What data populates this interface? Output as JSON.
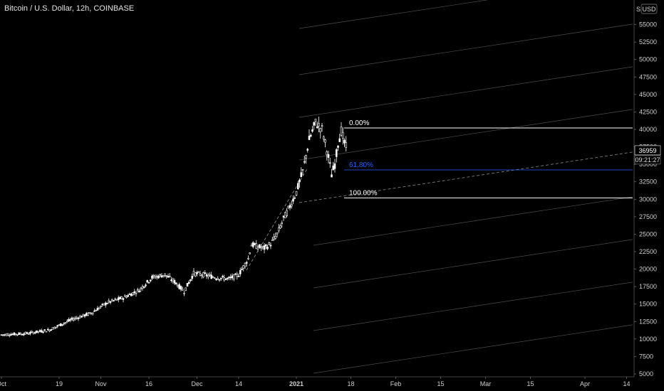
{
  "header": {
    "title": "Bitcoin / U.S. Dollar, 12h, COINBASE"
  },
  "axis": {
    "currency": "USD",
    "scale_letter": "S",
    "last_price": "36959",
    "countdown": "09:21:27"
  },
  "colors": {
    "candle": "#ffffff",
    "fib_mid": "#2962ff",
    "channel": "#8a8a8a"
  },
  "chart_data": {
    "type": "candlestick",
    "ylim": [
      5000,
      57500
    ],
    "y_ticks": [
      5000,
      7500,
      10000,
      12500,
      15000,
      17500,
      20000,
      22500,
      25000,
      27500,
      30000,
      32500,
      35000,
      37500,
      40000,
      42500,
      45000,
      47500,
      50000,
      52500,
      55000
    ],
    "x_ticks": [
      {
        "label": "Oct",
        "day": 0
      },
      {
        "label": "19",
        "day": 18
      },
      {
        "label": "Nov",
        "day": 31
      },
      {
        "label": "16",
        "day": 46
      },
      {
        "label": "Dec",
        "day": 61
      },
      {
        "label": "14",
        "day": 74
      },
      {
        "label": "2021",
        "day": 92
      },
      {
        "label": "18",
        "day": 109
      },
      {
        "label": "Feb",
        "day": 123
      },
      {
        "label": "15",
        "day": 137
      },
      {
        "label": "Mar",
        "day": 151
      },
      {
        "label": "15",
        "day": 165
      },
      {
        "label": "Apr",
        "day": 182
      },
      {
        "label": "14",
        "day": 195
      }
    ],
    "price_path": [
      [
        0,
        10600
      ],
      [
        8,
        10800
      ],
      [
        15,
        11300
      ],
      [
        22,
        12800
      ],
      [
        28,
        13700
      ],
      [
        33,
        15200
      ],
      [
        38,
        15900
      ],
      [
        43,
        17000
      ],
      [
        47,
        18800
      ],
      [
        51,
        19200
      ],
      [
        54,
        18200
      ],
      [
        57,
        16800
      ],
      [
        60,
        19400
      ],
      [
        63,
        19200
      ],
      [
        67,
        18800
      ],
      [
        71,
        18600
      ],
      [
        74,
        19200
      ],
      [
        77,
        21500
      ],
      [
        78,
        23500
      ],
      [
        80,
        23200
      ],
      [
        82,
        23000
      ],
      [
        84,
        23600
      ],
      [
        86,
        25000
      ],
      [
        88,
        27200
      ],
      [
        90,
        29000
      ],
      [
        92,
        31000
      ],
      [
        94,
        34000
      ],
      [
        96,
        38500
      ],
      [
        98,
        41000
      ],
      [
        100,
        40000
      ],
      [
        102,
        36000
      ],
      [
        103,
        33500
      ],
      [
        104,
        35000
      ],
      [
        105,
        38000
      ],
      [
        106,
        39800
      ],
      [
        107,
        38000
      ],
      [
        108,
        36959
      ]
    ],
    "fibonacci": [
      {
        "level": "0.00%",
        "price": 40200
      },
      {
        "level": "61.80%",
        "price": 34200
      },
      {
        "level": "100.00%",
        "price": 30200
      }
    ],
    "current_price": 36959
  }
}
